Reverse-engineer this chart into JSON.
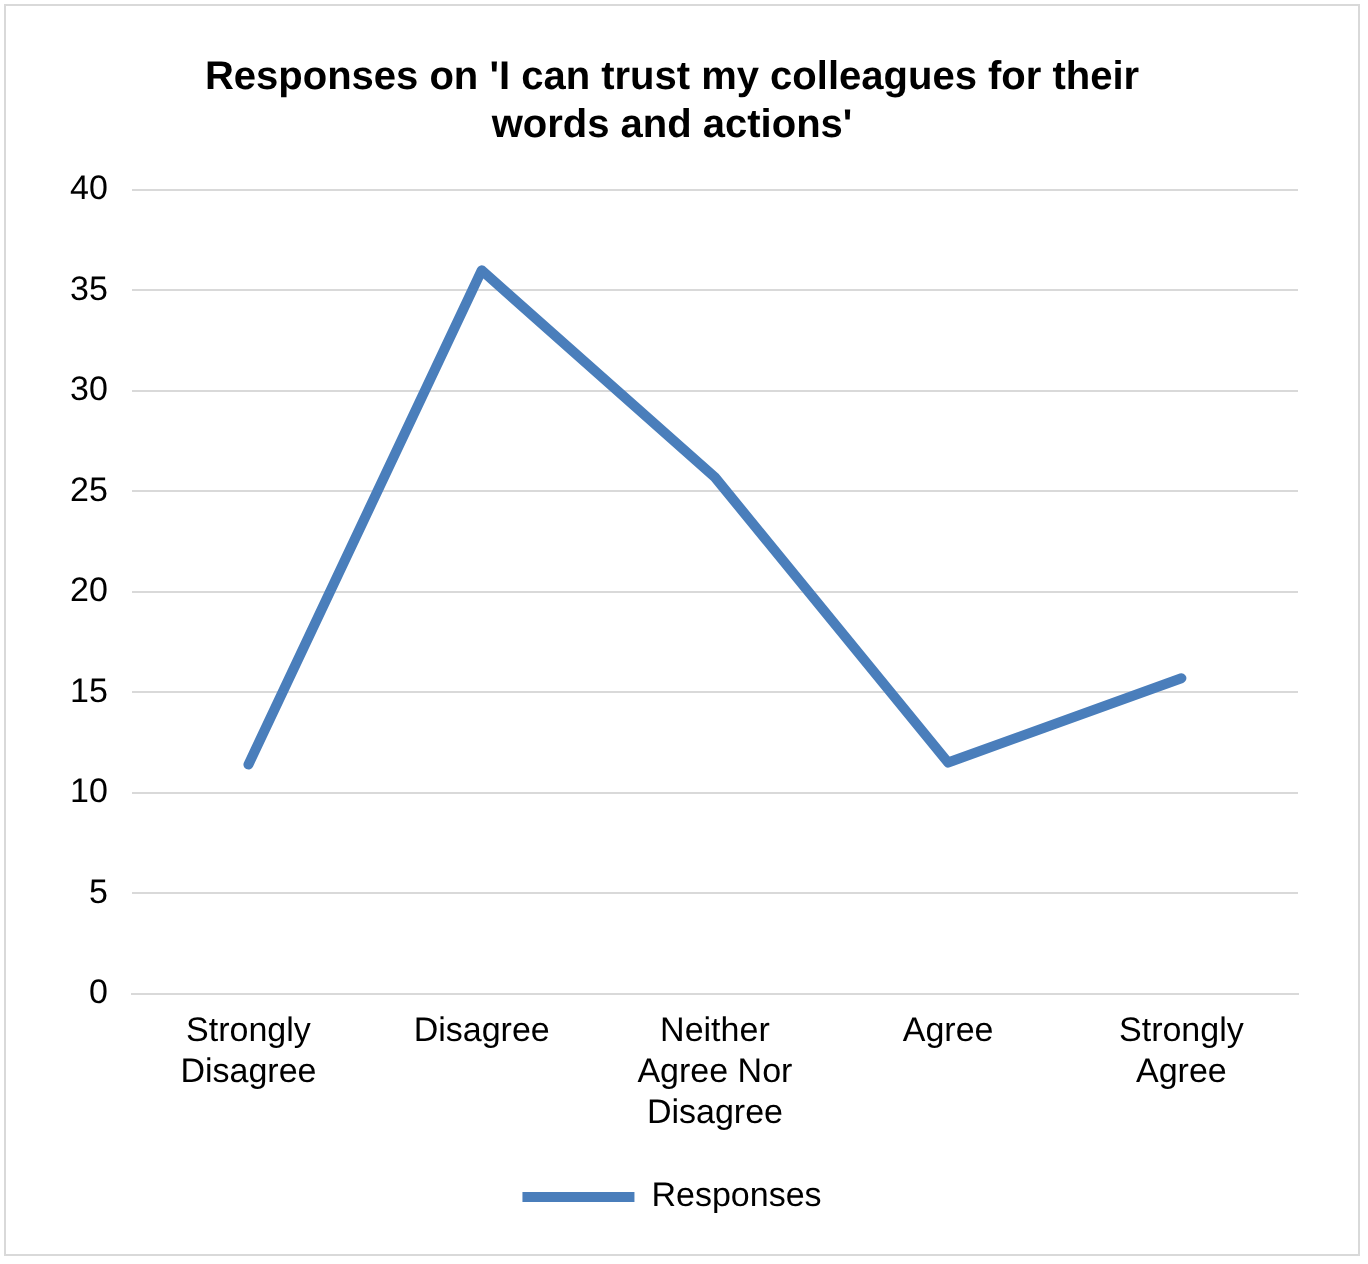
{
  "chart_data": {
    "type": "line",
    "title": "Responses on 'I can trust my colleagues for their words and actions'",
    "categories": [
      "Strongly Disagree",
      "Disagree",
      "Neither Agree Nor Disagree",
      "Agree",
      "Strongly Agree"
    ],
    "series": [
      {
        "name": "Responses",
        "color": "#4a7ebb",
        "values": [
          11.4,
          36,
          25.7,
          11.5,
          15.7
        ]
      }
    ],
    "ylim": [
      0,
      40
    ],
    "yticks": [
      0,
      5,
      10,
      15,
      20,
      25,
      30,
      35,
      40
    ],
    "grid": "y",
    "legend": "bottom",
    "marker": "none",
    "line_style": "solid"
  }
}
